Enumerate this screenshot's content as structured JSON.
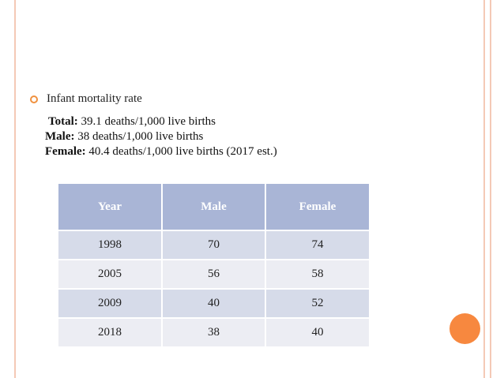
{
  "bullet": {
    "text": "Infant mortality rate"
  },
  "stats": {
    "total_label": "Total:",
    "total_value": " 39.1 deaths/1,000 live births",
    "male_label": "Male:",
    "male_value": " 38 deaths/1,000 live births",
    "female_label": "Female:",
    "female_value": " 40.4 deaths/1,000 live births (2017 est.)"
  },
  "table": {
    "headers": [
      "Year",
      "Male",
      "Female"
    ],
    "rows": [
      [
        "1998",
        "70",
        "74"
      ],
      [
        "2005",
        "56",
        "58"
      ],
      [
        "2009",
        "40",
        "52"
      ],
      [
        "2018",
        "38",
        "40"
      ]
    ]
  },
  "colors": {
    "accent_orange": "#f7883f",
    "border_peach": "#f4c9b6",
    "table_header": "#a9b5d6",
    "row_dark": "#d6dbe9",
    "row_light": "#ecedf3"
  }
}
